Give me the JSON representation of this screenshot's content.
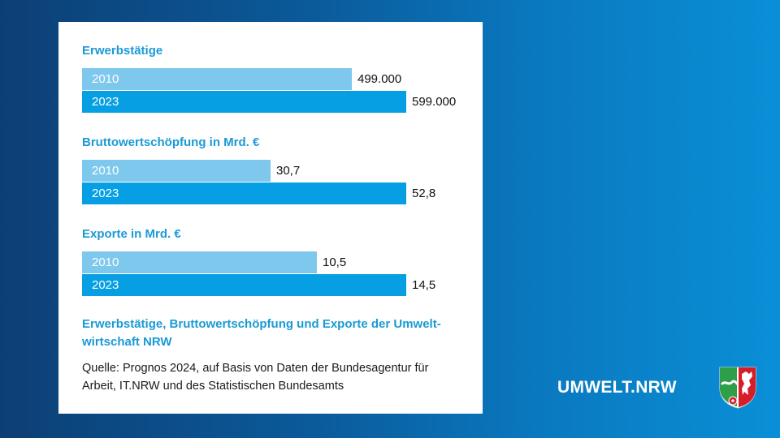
{
  "chart_data": [
    {
      "type": "bar",
      "title": "Erwerbstätige",
      "categories": [
        "2010",
        "2023"
      ],
      "values": [
        499000,
        599000
      ],
      "value_labels": [
        "499.000",
        "599.000"
      ],
      "colors": [
        "#7ec8ee",
        "#079fe3"
      ]
    },
    {
      "type": "bar",
      "title": "Bruttowertschöpfung in Mrd. €",
      "categories": [
        "2010",
        "2023"
      ],
      "values": [
        30.7,
        52.8
      ],
      "value_labels": [
        "30,7",
        "52,8"
      ],
      "colors": [
        "#7ec8ee",
        "#079fe3"
      ]
    },
    {
      "type": "bar",
      "title": "Exporte in Mrd. €",
      "categories": [
        "2010",
        "2023"
      ],
      "values": [
        10.5,
        14.5
      ],
      "value_labels": [
        "10,5",
        "14,5"
      ],
      "colors": [
        "#7ec8ee",
        "#079fe3"
      ]
    }
  ],
  "caption": "Erwerbstätige, Bruttowertschöpfung und Exporte der Umwelt-wirtschaft NRW",
  "source": "Quelle: Prognos 2024, auf Basis von Daten der Bundesagentur für Arbeit, IT.NRW und des Statistischen Bundesamts",
  "brand": "UMWELT.NRW",
  "logo_icon": "nrw-coat-of-arms-icon"
}
